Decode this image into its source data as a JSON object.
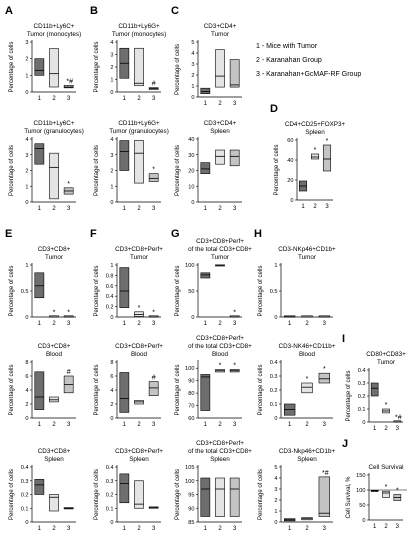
{
  "legend": [
    "1 - Mice with Tumor",
    "2 - Karanahan Group",
    "3 - Karanahan+GcMAF-RF Group"
  ],
  "colors": {
    "group1": "#6e6e6e",
    "group2": "#e4e4e4",
    "group3": "#c4c4c4",
    "stroke": "#000000"
  },
  "chart_data": [
    {
      "id": "A1",
      "type": "box",
      "letter": "A",
      "title": [
        "CD11b+Ly6C+",
        "Tumor (monocytes)"
      ],
      "ylabel": "Percentage of cells",
      "ylim": [
        0,
        3
      ],
      "yticks": [
        0,
        1,
        2,
        3
      ],
      "categories": [
        "1",
        "2",
        "3"
      ],
      "boxes": [
        [
          1.0,
          2.0,
          1.3
        ],
        [
          0.3,
          2.6,
          1.1
        ],
        [
          0.25,
          0.4,
          0.3
        ]
      ],
      "marks": [
        "",
        "",
        "*#"
      ]
    },
    {
      "id": "B1",
      "type": "box",
      "letter": "B",
      "title": [
        "CD11b+Ly6G+",
        "Tumor (monocytes)"
      ],
      "ylabel": "Percentage of cells",
      "ylim": [
        0,
        4
      ],
      "yticks": [
        0,
        1,
        2,
        3,
        4
      ],
      "categories": [
        "1",
        "2",
        "3"
      ],
      "boxes": [
        [
          1.1,
          3.5,
          2.3
        ],
        [
          0.5,
          3.5,
          0.7
        ],
        [
          0.2,
          0.35,
          0.28
        ]
      ],
      "marks": [
        "",
        "",
        "#"
      ]
    },
    {
      "id": "C1",
      "type": "box",
      "letter": "C",
      "title": [
        "CD3+CD4+",
        "Tumor"
      ],
      "ylabel": "Percentage of cells",
      "ylim": [
        0,
        5
      ],
      "yticks": [
        0,
        1,
        2,
        3,
        4,
        5
      ],
      "categories": [
        "1",
        "2",
        "3"
      ],
      "boxes": [
        [
          0.3,
          0.8,
          0.5
        ],
        [
          0.9,
          4.3,
          1.9
        ],
        [
          0.9,
          3.4,
          1.1
        ]
      ],
      "marks": [
        "",
        "",
        ""
      ]
    },
    {
      "id": "A2",
      "type": "box",
      "letter": "",
      "title": [
        "CD11b+Ly6C+",
        "Tumor (granulocytes)"
      ],
      "ylabel": "Percentage of cells",
      "ylim": [
        0,
        4
      ],
      "yticks": [
        0,
        1,
        2,
        3,
        4
      ],
      "categories": [
        "1",
        "2",
        "3"
      ],
      "boxes": [
        [
          2.4,
          3.7,
          3.4
        ],
        [
          0.2,
          3.1,
          2.2
        ],
        [
          0.5,
          0.9,
          0.7
        ]
      ],
      "marks": [
        "",
        "",
        "*"
      ]
    },
    {
      "id": "B2",
      "type": "box",
      "letter": "",
      "title": [
        "CD11b+Ly6G+",
        "Tumor (granulocytes)"
      ],
      "ylabel": "Percentage of cells",
      "ylim": [
        0,
        4
      ],
      "yticks": [
        0,
        1,
        2,
        3,
        4
      ],
      "categories": [
        "1",
        "2",
        "3"
      ],
      "boxes": [
        [
          2.0,
          3.9,
          3.2
        ],
        [
          1.2,
          3.9,
          3.1
        ],
        [
          1.3,
          1.8,
          1.5
        ]
      ],
      "marks": [
        "",
        "",
        "*"
      ]
    },
    {
      "id": "C2",
      "type": "box",
      "letter": "",
      "title": [
        "CD3+CD4+",
        "Spleen"
      ],
      "ylabel": "Percentage of cells",
      "ylim": [
        0,
        40
      ],
      "yticks": [
        0,
        10,
        20,
        30,
        40
      ],
      "categories": [
        "1",
        "2",
        "3"
      ],
      "boxes": [
        [
          18,
          25,
          21
        ],
        [
          24,
          33,
          29
        ],
        [
          23,
          33,
          29
        ]
      ],
      "marks": [
        "",
        "",
        ""
      ]
    },
    {
      "id": "D",
      "type": "box",
      "letter": "D",
      "title": [
        "CD4+CD25+FOXP3+",
        "Spleen"
      ],
      "ylabel": "Percentage of cells",
      "ylim": [
        0,
        60
      ],
      "yticks": [
        0,
        20,
        40,
        60
      ],
      "categories": [
        "1",
        "2",
        "3"
      ],
      "boxes": [
        [
          9,
          19,
          14
        ],
        [
          41,
          46,
          43
        ],
        [
          29,
          55,
          41
        ]
      ],
      "marks": [
        "",
        "*",
        "*"
      ]
    },
    {
      "id": "E1",
      "type": "box",
      "letter": "E",
      "title": [
        "CD3+CD8+",
        "Tumor"
      ],
      "ylabel": "Percentage of cells",
      "ylim": [
        0,
        1.0
      ],
      "yticks": [
        0,
        0.5,
        1.0
      ],
      "categories": [
        "1",
        "2",
        "3"
      ],
      "boxes": [
        [
          0.37,
          0.85,
          0.6
        ],
        [
          0,
          0.005,
          0
        ],
        [
          0,
          0.005,
          0
        ]
      ],
      "marks": [
        "",
        "*",
        "*"
      ]
    },
    {
      "id": "F1",
      "type": "box",
      "letter": "F",
      "title": [
        "CD3+CD8+Perf+",
        "Tumor"
      ],
      "ylabel": "Percentage of cells",
      "ylim": [
        0,
        1.0
      ],
      "yticks": [
        0,
        0.2,
        0.4,
        0.6,
        0.8,
        1.0
      ],
      "categories": [
        "1",
        "2",
        "3"
      ],
      "boxes": [
        [
          0.18,
          0.95,
          0.5
        ],
        [
          0.01,
          0.1,
          0.05
        ],
        [
          0,
          0.01,
          0
        ]
      ],
      "marks": [
        "",
        "*",
        "*"
      ]
    },
    {
      "id": "G1",
      "type": "box",
      "letter": "G",
      "title": [
        "CD3+CD8+Perf+",
        "of the total CD3+CD8+",
        "Tumor"
      ],
      "ylabel": "Percentage of cells",
      "ylim": [
        0,
        100
      ],
      "yticks": [
        0,
        50,
        100
      ],
      "categories": [
        "1",
        "2",
        "3"
      ],
      "boxes": [
        [
          75,
          85,
          81
        ],
        [
          98,
          100,
          99
        ],
        [
          0,
          0.5,
          0
        ]
      ],
      "marks": [
        "",
        "",
        "*"
      ]
    },
    {
      "id": "H1",
      "type": "box",
      "letter": "H",
      "title": [
        "CD3-NKp46+CD1b+",
        "Tumor"
      ],
      "ylabel": "Percentage of cells",
      "ylim": [
        0,
        1.0
      ],
      "yticks": [
        0,
        0.5,
        1.0
      ],
      "categories": [
        "1",
        "2",
        "3"
      ],
      "boxes": [
        [
          0,
          0.005,
          0
        ],
        [
          0,
          0.005,
          0
        ],
        [
          0,
          0.005,
          0
        ]
      ],
      "marks": [
        "",
        "",
        ""
      ]
    },
    {
      "id": "E2",
      "type": "box",
      "letter": "",
      "title": [
        "CD3+CD8+",
        "Blood"
      ],
      "ylabel": "Percentage of cells",
      "ylim": [
        0,
        8
      ],
      "yticks": [
        0,
        2,
        4,
        6,
        8
      ],
      "categories": [
        "1",
        "2",
        "3"
      ],
      "boxes": [
        [
          1.2,
          6.6,
          3.0
        ],
        [
          2.3,
          3.0,
          2.6
        ],
        [
          3.6,
          6.0,
          4.8
        ]
      ],
      "marks": [
        "",
        "",
        "#"
      ]
    },
    {
      "id": "F2",
      "type": "box",
      "letter": "",
      "title": [
        "CD3+CD8+Perf+",
        "Blood"
      ],
      "ylabel": "Percentage of cells",
      "ylim": [
        0,
        8
      ],
      "yticks": [
        0,
        2,
        4,
        6,
        8
      ],
      "categories": [
        "1",
        "2",
        "3"
      ],
      "boxes": [
        [
          0.8,
          6.5,
          2.8
        ],
        [
          2.0,
          2.5,
          2.3
        ],
        [
          3.2,
          5.2,
          4.3
        ]
      ],
      "marks": [
        "",
        "",
        "#"
      ]
    },
    {
      "id": "G2",
      "type": "box",
      "letter": "",
      "title": [
        "CD3+CD8+Perf+",
        "of the total CD3+CD8+",
        "Blood"
      ],
      "ylabel": "Percentage of cells",
      "ylim": [
        60,
        105
      ],
      "yticks": [
        60,
        70,
        80,
        90,
        100
      ],
      "categories": [
        "1",
        "2",
        "3"
      ],
      "boxes": [
        [
          66,
          95,
          93
        ],
        [
          97,
          99,
          98
        ],
        [
          97,
          99,
          98
        ]
      ],
      "marks": [
        "",
        "*",
        "*"
      ]
    },
    {
      "id": "H2",
      "type": "box",
      "letter": "",
      "title": [
        "CD3-NK46+CD11b+",
        "Blood"
      ],
      "ylabel": "Percentage of cells",
      "ylim": [
        0,
        0.4
      ],
      "yticks": [
        0,
        0.1,
        0.2,
        0.3,
        0.4
      ],
      "categories": [
        "1",
        "2",
        "3"
      ],
      "boxes": [
        [
          0.02,
          0.1,
          0.06
        ],
        [
          0.18,
          0.25,
          0.22
        ],
        [
          0.25,
          0.32,
          0.28
        ]
      ],
      "marks": [
        "",
        "*",
        "*"
      ]
    },
    {
      "id": "I",
      "type": "box",
      "letter": "I",
      "title": [
        "CD80+CD83+",
        "Tumor"
      ],
      "ylabel": "Percentage of cells",
      "ylim": [
        0,
        0.4
      ],
      "yticks": [
        0,
        0.1,
        0.2,
        0.3,
        0.4
      ],
      "categories": [
        "1",
        "2",
        "3"
      ],
      "boxes": [
        [
          0.2,
          0.3,
          0.26
        ],
        [
          0.07,
          0.1,
          0.085
        ],
        [
          0,
          0.005,
          0
        ]
      ],
      "marks": [
        "",
        "*",
        "*#"
      ]
    },
    {
      "id": "E3",
      "type": "box",
      "letter": "",
      "title": [
        "CD3+CD8+",
        "Spleen"
      ],
      "ylabel": "Percentage of cells",
      "ylim": [
        0,
        0.4
      ],
      "yticks": [
        0,
        0.1,
        0.2,
        0.3,
        0.4
      ],
      "categories": [
        "1",
        "2",
        "3"
      ],
      "boxes": [
        [
          0.2,
          0.31,
          0.27
        ],
        [
          0.08,
          0.2,
          0.18
        ],
        [
          0.095,
          0.105,
          0.1
        ]
      ],
      "marks": [
        "",
        "",
        ""
      ]
    },
    {
      "id": "F3",
      "type": "box",
      "letter": "",
      "title": [
        "CD3+CD8+Perf+",
        "Spleen"
      ],
      "ylabel": "Percentage of cells",
      "ylim": [
        0,
        0.4
      ],
      "yticks": [
        0,
        0.1,
        0.2,
        0.3,
        0.4
      ],
      "categories": [
        "1",
        "2",
        "3"
      ],
      "boxes": [
        [
          0.14,
          0.35,
          0.28
        ],
        [
          0.1,
          0.3,
          0.13
        ],
        [
          0.1,
          0.11,
          0.105
        ]
      ],
      "marks": [
        "",
        "",
        ""
      ]
    },
    {
      "id": "G3",
      "type": "box",
      "letter": "",
      "title": [
        "CD3+CD8+Perf+",
        "of the total CD3+CD8+",
        "Spleen"
      ],
      "ylabel": "Percentage of cells",
      "ylim": [
        85,
        105
      ],
      "yticks": [
        85,
        90,
        95,
        100,
        105
      ],
      "categories": [
        "1",
        "2",
        "3"
      ],
      "boxes": [
        [
          87,
          101,
          97
        ],
        [
          87,
          101,
          97
        ],
        [
          87,
          101,
          97
        ]
      ],
      "marks": [
        "",
        "",
        ""
      ]
    },
    {
      "id": "H3",
      "type": "box",
      "letter": "",
      "title": [
        "CD3-Nkp46+CD1b+",
        "Spleen"
      ],
      "ylabel": "Percentage of cells",
      "ylim": [
        0,
        5
      ],
      "yticks": [
        0,
        1,
        2,
        3,
        4,
        5
      ],
      "categories": [
        "1",
        "2",
        "3"
      ],
      "boxes": [
        [
          0.1,
          0.3,
          0.2
        ],
        [
          0.2,
          0.4,
          0.3
        ],
        [
          0.5,
          4.1,
          0.8
        ]
      ],
      "marks": [
        "",
        "",
        "*#"
      ]
    },
    {
      "id": "J",
      "type": "box",
      "letter": "J",
      "title": [
        "Cell Survival"
      ],
      "ylabel": "Cell Survival, %",
      "ylim": [
        0,
        150
      ],
      "yticks": [
        0,
        50,
        100,
        150
      ],
      "categories": [
        "1",
        "2",
        "3"
      ],
      "boxes": [
        [
          95,
          99,
          97
        ],
        [
          75,
          96,
          90
        ],
        [
          65,
          85,
          75
        ]
      ],
      "marks": [
        "",
        "*",
        "*"
      ],
      "refline": 100
    }
  ]
}
